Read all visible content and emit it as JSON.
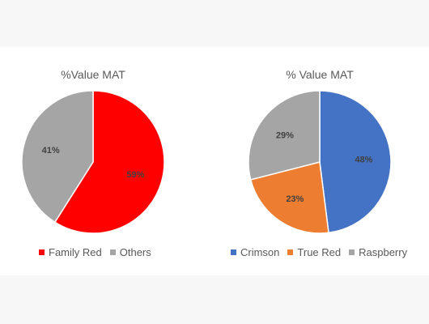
{
  "chart_data": [
    {
      "type": "pie",
      "title": "%Value MAT",
      "legend_position": "bottom",
      "slices": [
        {
          "name": "Family Red",
          "value": 59,
          "label": "59%",
          "color": "#ff0000"
        },
        {
          "name": "Others",
          "value": 41,
          "label": "41%",
          "color": "#a5a5a5"
        }
      ]
    },
    {
      "type": "pie",
      "title": "% Value MAT",
      "legend_position": "bottom",
      "slices": [
        {
          "name": "Crimson",
          "value": 48,
          "label": "48%",
          "color": "#4472c4"
        },
        {
          "name": "True Red",
          "value": 23,
          "label": "23%",
          "color": "#ed7d31"
        },
        {
          "name": "Raspberry",
          "value": 29,
          "label": "29%",
          "color": "#a5a5a5"
        }
      ]
    }
  ]
}
